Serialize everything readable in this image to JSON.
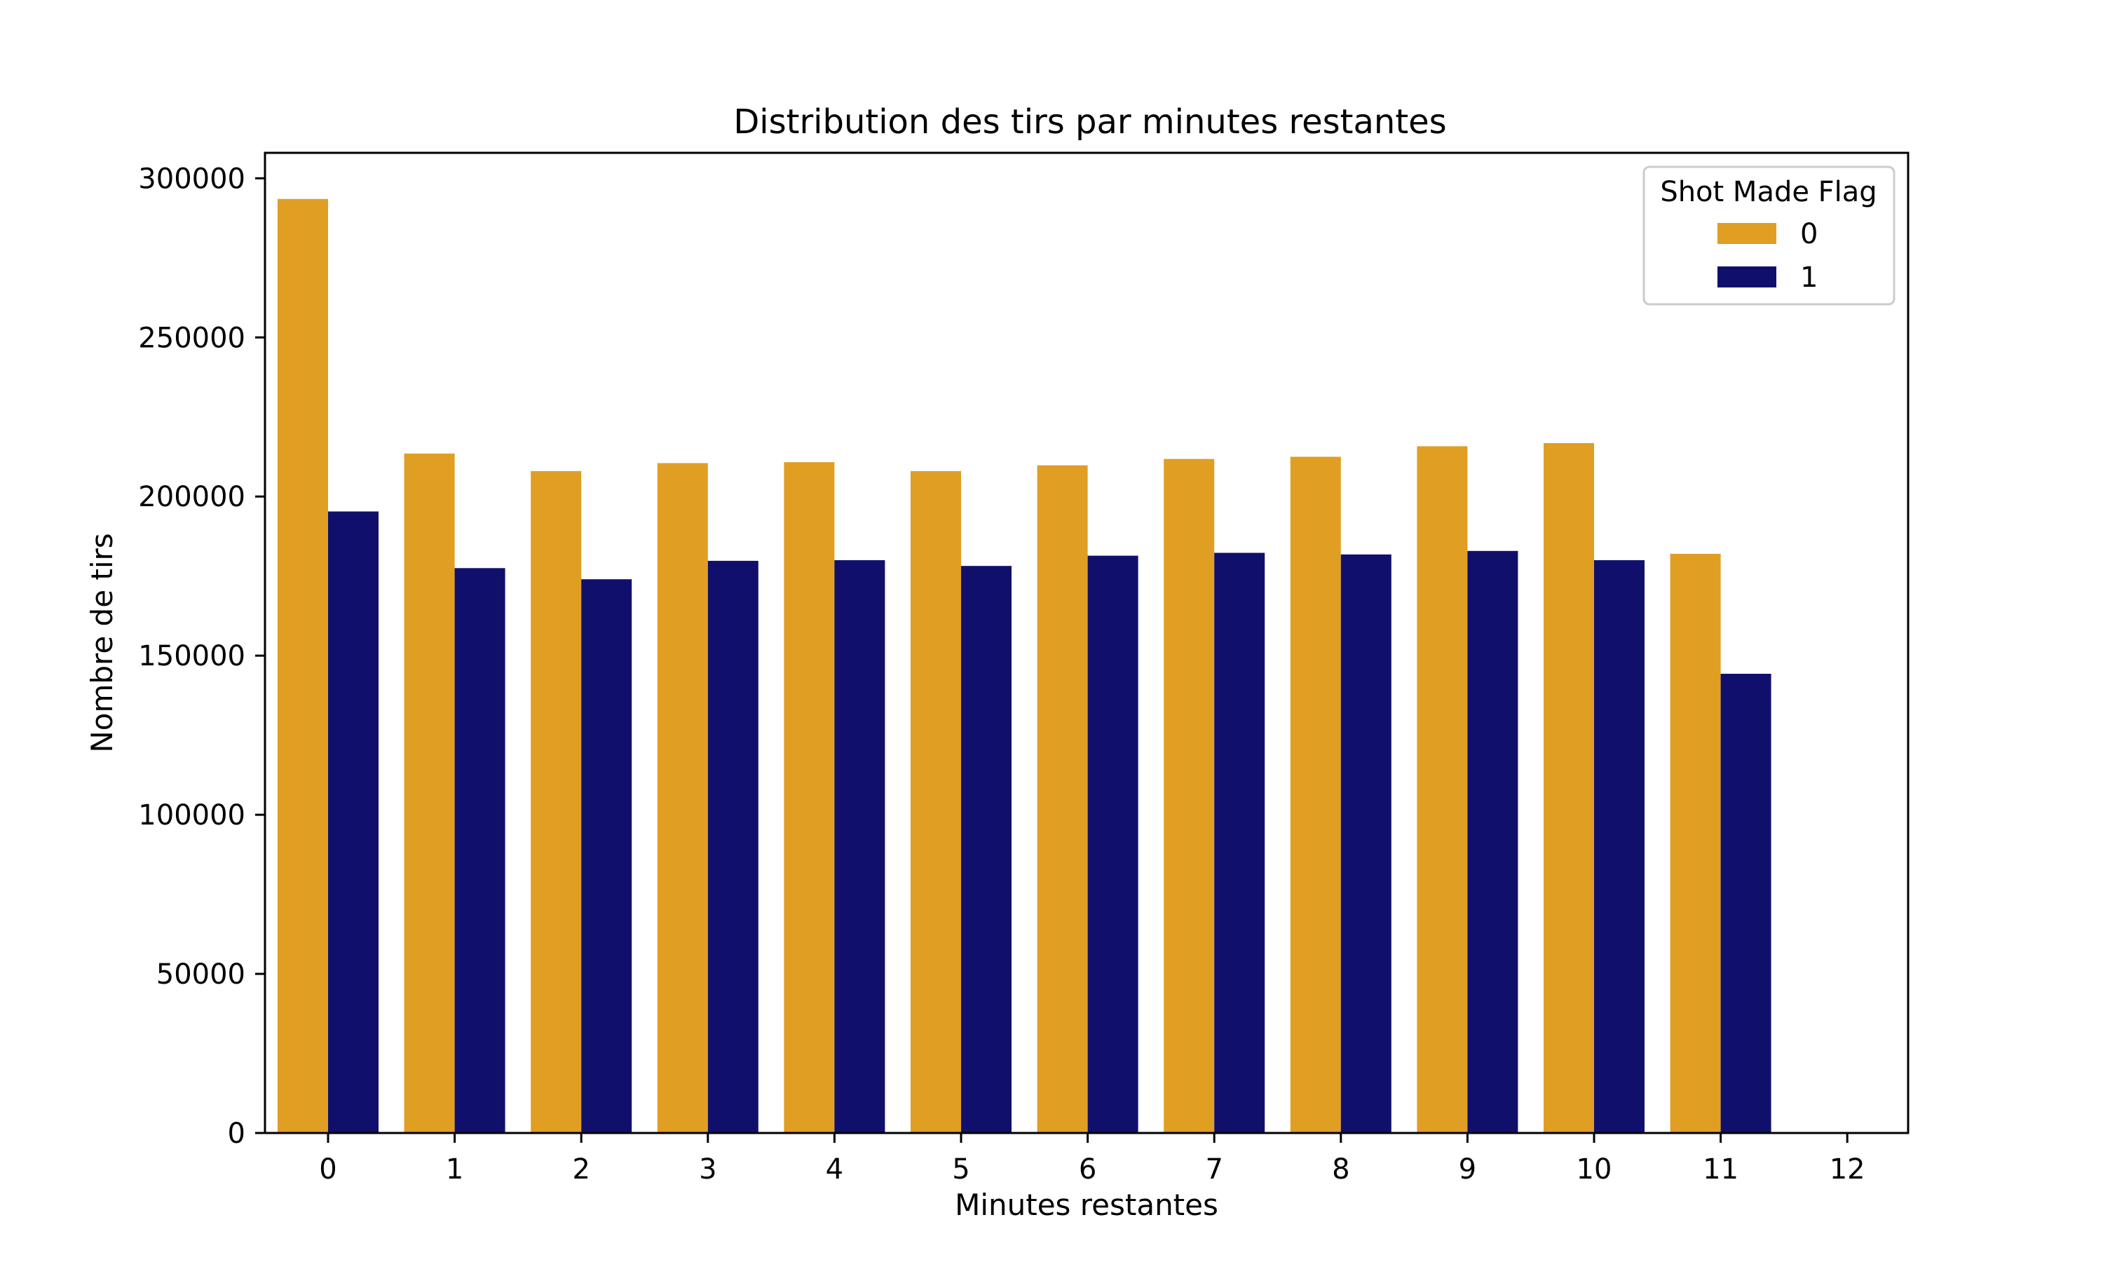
{
  "chart_data": {
    "type": "bar",
    "title": "Distribution des tirs par minutes restantes",
    "xlabel": "Minutes restantes",
    "ylabel": "Nombre de tirs",
    "categories": [
      "0",
      "1",
      "2",
      "3",
      "4",
      "5",
      "6",
      "7",
      "8",
      "9",
      "10",
      "11",
      "12"
    ],
    "series": [
      {
        "name": "0",
        "color": "#E09E23",
        "values": [
          293500,
          213500,
          208000,
          210500,
          210800,
          208000,
          209800,
          211800,
          212500,
          215800,
          216800,
          182000,
          0
        ]
      },
      {
        "name": "1",
        "color": "#10106C",
        "values": [
          195300,
          177500,
          174000,
          179800,
          180000,
          178200,
          181400,
          182300,
          181800,
          182900,
          180000,
          144300,
          0
        ]
      }
    ],
    "ylim": [
      0,
      308000
    ],
    "yticks": [
      0,
      50000,
      100000,
      150000,
      200000,
      250000,
      300000
    ],
    "ytick_labels": [
      "0",
      "50000",
      "100000",
      "150000",
      "200000",
      "250000",
      "300000"
    ],
    "legend": {
      "title": "Shot Made Flag",
      "position": "top-right"
    },
    "grid": false
  }
}
